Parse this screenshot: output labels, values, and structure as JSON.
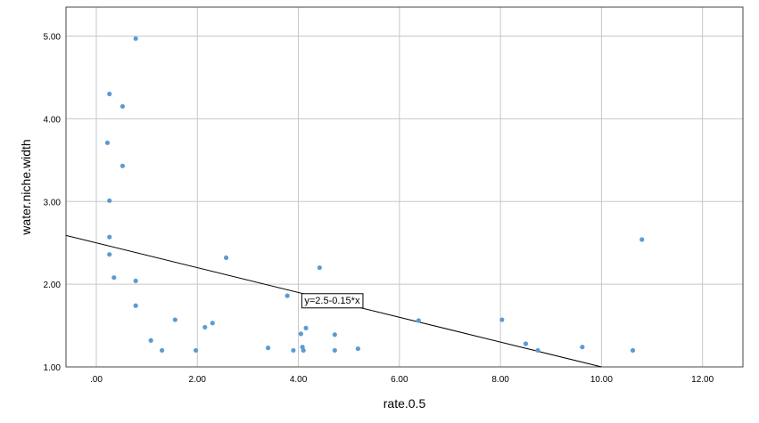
{
  "chart_data": {
    "type": "scatter",
    "xlabel": "rate.0.5",
    "ylabel": "water.niche.width",
    "xlim": [
      -0.6,
      12.8
    ],
    "ylim": [
      1.0,
      5.35
    ],
    "x_ticks": [
      0,
      2,
      4,
      6,
      8,
      10,
      12
    ],
    "x_tick_labels": [
      ".00",
      "2.00",
      "4.00",
      "6.00",
      "8.00",
      "10.00",
      "12.00"
    ],
    "y_ticks": [
      1,
      2,
      3,
      4,
      5
    ],
    "y_tick_labels": [
      "1.00",
      "2.00",
      "3.00",
      "4.00",
      "5.00"
    ],
    "grid": true,
    "point_color": "#5B9BD5",
    "fit_line": {
      "intercept": 2.5,
      "slope": -0.15,
      "label": "y=2.5-0.15*x",
      "label_anchor": [
        4.05,
        1.81
      ]
    },
    "points": [
      {
        "x": 0.78,
        "y": 4.97
      },
      {
        "x": 0.26,
        "y": 4.3
      },
      {
        "x": 0.52,
        "y": 4.15
      },
      {
        "x": 0.22,
        "y": 3.71
      },
      {
        "x": 0.52,
        "y": 3.43
      },
      {
        "x": 0.26,
        "y": 3.01
      },
      {
        "x": 0.26,
        "y": 2.57
      },
      {
        "x": 0.26,
        "y": 2.36
      },
      {
        "x": 0.35,
        "y": 2.08
      },
      {
        "x": 0.78,
        "y": 2.04
      },
      {
        "x": 0.78,
        "y": 1.74
      },
      {
        "x": 1.08,
        "y": 1.32
      },
      {
        "x": 1.3,
        "y": 1.2
      },
      {
        "x": 1.56,
        "y": 1.57
      },
      {
        "x": 1.97,
        "y": 1.2
      },
      {
        "x": 2.15,
        "y": 1.48
      },
      {
        "x": 2.3,
        "y": 1.53
      },
      {
        "x": 2.57,
        "y": 2.32
      },
      {
        "x": 3.4,
        "y": 1.23
      },
      {
        "x": 3.78,
        "y": 1.86
      },
      {
        "x": 3.9,
        "y": 1.2
      },
      {
        "x": 4.05,
        "y": 1.4
      },
      {
        "x": 4.08,
        "y": 1.24
      },
      {
        "x": 4.1,
        "y": 1.2
      },
      {
        "x": 4.15,
        "y": 1.47
      },
      {
        "x": 4.42,
        "y": 2.2
      },
      {
        "x": 4.72,
        "y": 1.39
      },
      {
        "x": 4.72,
        "y": 1.2
      },
      {
        "x": 5.18,
        "y": 1.22
      },
      {
        "x": 6.38,
        "y": 1.56
      },
      {
        "x": 8.03,
        "y": 1.57
      },
      {
        "x": 8.5,
        "y": 1.28
      },
      {
        "x": 8.74,
        "y": 1.2
      },
      {
        "x": 9.62,
        "y": 1.24
      },
      {
        "x": 10.62,
        "y": 1.2
      },
      {
        "x": 10.8,
        "y": 2.54
      }
    ]
  }
}
